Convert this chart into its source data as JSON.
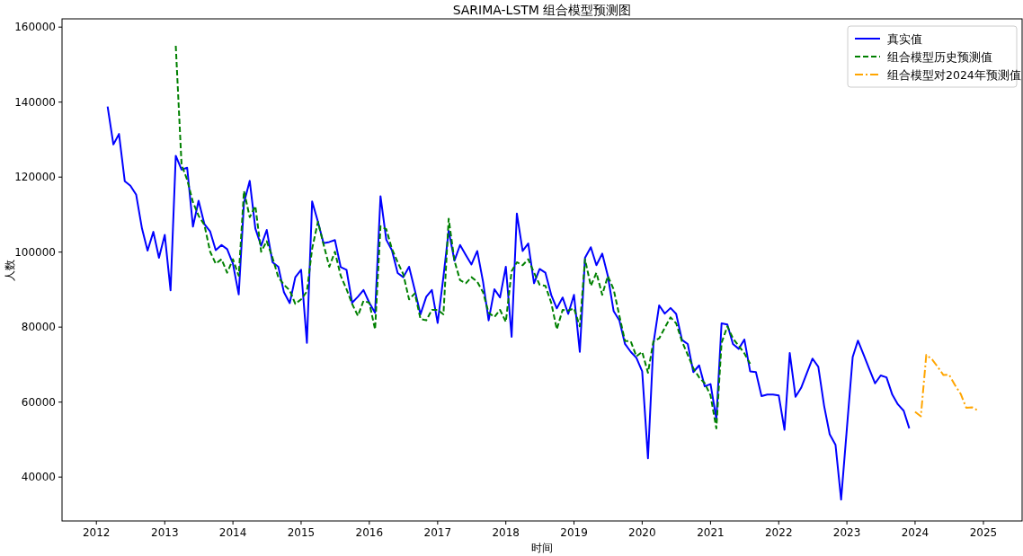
{
  "chart_data": {
    "type": "line",
    "title": "SARIMA-LSTM 组合模型预测图",
    "xlabel": "时间",
    "ylabel": "人数",
    "xlim": [
      "2011-07-01",
      "2025-07-27"
    ],
    "ylim": [
      28300,
      162200
    ],
    "xticks": [
      "2012",
      "2013",
      "2014",
      "2015",
      "2016",
      "2017",
      "2018",
      "2019",
      "2020",
      "2021",
      "2022",
      "2023",
      "2024",
      "2025"
    ],
    "yticks": [
      40000,
      60000,
      80000,
      100000,
      120000,
      140000,
      160000
    ],
    "legend": "top right",
    "series": [
      {
        "name": "真实值",
        "color": "#0000ff",
        "line_style": "solid",
        "x": [
          "2012-03",
          "2012-04",
          "2012-05",
          "2012-06",
          "2012-07",
          "2012-08",
          "2012-09",
          "2012-10",
          "2012-11",
          "2012-12",
          "2013-01",
          "2013-02",
          "2013-03",
          "2013-04",
          "2013-05",
          "2013-06",
          "2013-07",
          "2013-08",
          "2013-09",
          "2013-10",
          "2013-11",
          "2013-12",
          "2014-01",
          "2014-02",
          "2014-03",
          "2014-04",
          "2014-05",
          "2014-06",
          "2014-07",
          "2014-08",
          "2014-09",
          "2014-10",
          "2014-11",
          "2014-12",
          "2015-01",
          "2015-02",
          "2015-03",
          "2015-04",
          "2015-05",
          "2015-06",
          "2015-07",
          "2015-08",
          "2015-09",
          "2015-10",
          "2015-11",
          "2015-12",
          "2016-01",
          "2016-02",
          "2016-03",
          "2016-04",
          "2016-05",
          "2016-06",
          "2016-07",
          "2016-08",
          "2016-09",
          "2016-10",
          "2016-11",
          "2016-12",
          "2017-01",
          "2017-02",
          "2017-03",
          "2017-04",
          "2017-05",
          "2017-06",
          "2017-07",
          "2017-08",
          "2017-09",
          "2017-10",
          "2017-11",
          "2017-12",
          "2018-01",
          "2018-02",
          "2018-03",
          "2018-04",
          "2018-05",
          "2018-06",
          "2018-07",
          "2018-08",
          "2018-09",
          "2018-10",
          "2018-11",
          "2018-12",
          "2019-01",
          "2019-02",
          "2019-03",
          "2019-04",
          "2019-05",
          "2019-06",
          "2019-07",
          "2019-08",
          "2019-09",
          "2019-10",
          "2019-11",
          "2019-12",
          "2020-01",
          "2020-02",
          "2020-03",
          "2020-04",
          "2020-05",
          "2020-06",
          "2020-07",
          "2020-08",
          "2020-09",
          "2020-10",
          "2020-11",
          "2020-12",
          "2021-01",
          "2021-02",
          "2021-03",
          "2021-04",
          "2021-05",
          "2021-06",
          "2021-07",
          "2021-08",
          "2021-09",
          "2021-10",
          "2021-11",
          "2021-12",
          "2022-01",
          "2022-02",
          "2022-03",
          "2022-04",
          "2022-05",
          "2022-06",
          "2022-07",
          "2022-08",
          "2022-09",
          "2022-10",
          "2022-11",
          "2022-12",
          "2023-01",
          "2023-02",
          "2023-03",
          "2023-04",
          "2023-05",
          "2023-06",
          "2023-07",
          "2023-08",
          "2023-09",
          "2023-10",
          "2023-11",
          "2023-12"
        ],
        "values": [
          138800,
          128700,
          131500,
          118900,
          117700,
          115300,
          106300,
          100400,
          105400,
          98500,
          104600,
          89800,
          125700,
          122000,
          122500,
          106800,
          113700,
          107500,
          105500,
          100500,
          101900,
          100800,
          96900,
          88700,
          113100,
          119000,
          106300,
          101700,
          105900,
          97300,
          96100,
          89300,
          86400,
          93300,
          95300,
          75800,
          113500,
          108100,
          102400,
          102700,
          103200,
          96000,
          95300,
          86500,
          88100,
          89900,
          86500,
          83800,
          114900,
          103300,
          100500,
          94400,
          93300,
          96100,
          89800,
          83400,
          88100,
          89900,
          81100,
          93400,
          105700,
          97700,
          101900,
          99200,
          96700,
          100300,
          92100,
          81800,
          90100,
          87900,
          96100,
          77400,
          110300,
          100300,
          102300,
          91700,
          95500,
          94500,
          88600,
          85000,
          87900,
          83500,
          88600,
          73400,
          98500,
          101300,
          96500,
          99600,
          93700,
          84300,
          81800,
          75500,
          73400,
          71800,
          68200,
          45000,
          75500,
          85800,
          83600,
          85100,
          83500,
          76600,
          75500,
          68000,
          69800,
          64200,
          64800,
          55500,
          81000,
          80700,
          75500,
          74200,
          76700,
          68200,
          68000,
          61600,
          62000,
          62000,
          61800,
          52600,
          73100,
          61400,
          63800,
          67800,
          71600,
          69400,
          59000,
          51400,
          48600,
          34000,
          53000,
          72000,
          76400,
          72600,
          68800,
          65000,
          67100,
          66600,
          62000,
          59400,
          57700,
          53000
        ]
      },
      {
        "name": "组合模型历史预测值",
        "color": "#008000",
        "line_style": "dashed",
        "x": [
          "2013-03",
          "2013-04",
          "2013-05",
          "2013-06",
          "2013-07",
          "2013-08",
          "2013-09",
          "2013-10",
          "2013-11",
          "2013-12",
          "2014-01",
          "2014-02",
          "2014-03",
          "2014-04",
          "2014-05",
          "2014-06",
          "2014-07",
          "2014-08",
          "2014-09",
          "2014-10",
          "2014-11",
          "2014-12",
          "2015-01",
          "2015-02",
          "2015-03",
          "2015-04",
          "2015-05",
          "2015-06",
          "2015-07",
          "2015-08",
          "2015-09",
          "2015-10",
          "2015-11",
          "2015-12",
          "2016-01",
          "2016-02",
          "2016-03",
          "2016-04",
          "2016-05",
          "2016-06",
          "2016-07",
          "2016-08",
          "2016-09",
          "2016-10",
          "2016-11",
          "2016-12",
          "2017-01",
          "2017-02",
          "2017-03",
          "2017-04",
          "2017-05",
          "2017-06",
          "2017-07",
          "2017-08",
          "2017-09",
          "2017-10",
          "2017-11",
          "2017-12",
          "2018-01",
          "2018-02",
          "2018-03",
          "2018-04",
          "2018-05",
          "2018-06",
          "2018-07",
          "2018-08",
          "2018-09",
          "2018-10",
          "2018-11",
          "2018-12",
          "2019-01",
          "2019-02",
          "2019-03",
          "2019-04",
          "2019-05",
          "2019-06",
          "2019-07",
          "2019-08",
          "2019-09",
          "2019-10",
          "2019-11",
          "2019-12",
          "2020-01",
          "2020-02",
          "2020-03",
          "2020-04",
          "2020-05",
          "2020-06",
          "2020-07",
          "2020-08",
          "2020-09",
          "2020-10",
          "2020-11",
          "2020-12",
          "2021-01",
          "2021-02",
          "2021-03",
          "2021-04",
          "2021-05",
          "2021-06",
          "2021-07",
          "2021-08"
        ],
        "values": [
          155000,
          123300,
          119300,
          113300,
          109700,
          107300,
          100100,
          96900,
          98100,
          94500,
          98100,
          93700,
          116300,
          109300,
          112300,
          100100,
          102900,
          98500,
          93300,
          91300,
          89800,
          86200,
          87400,
          89500,
          100900,
          108100,
          102100,
          96100,
          100100,
          93700,
          90100,
          86200,
          83000,
          87000,
          86500,
          79400,
          106900,
          106100,
          100900,
          97300,
          94100,
          87400,
          89000,
          82200,
          81800,
          84600,
          84600,
          83400,
          108900,
          97700,
          92500,
          91700,
          93300,
          92100,
          89300,
          83800,
          82700,
          84600,
          81400,
          94900,
          97300,
          96500,
          98100,
          94500,
          91300,
          91000,
          86500,
          79400,
          84600,
          84400,
          85000,
          80200,
          98100,
          91000,
          94500,
          88600,
          93600,
          90100,
          83000,
          76300,
          76200,
          72200,
          73400,
          67800,
          76200,
          77000,
          79800,
          82600,
          81000,
          76200,
          72600,
          69000,
          66600,
          65000,
          61800,
          53000,
          75800,
          80200,
          77000,
          75000,
          73000,
          70200
        ]
      },
      {
        "name": "组合模型对2024年预测值",
        "color": "#ffa500",
        "line_style": "dashdot",
        "x": [
          "2024-01",
          "2024-02",
          "2024-03",
          "2024-04",
          "2024-05",
          "2024-06",
          "2024-07",
          "2024-08",
          "2024-09",
          "2024-10",
          "2024-11",
          "2024-12"
        ],
        "values": [
          57400,
          56200,
          72600,
          71400,
          69400,
          67200,
          67300,
          64600,
          62200,
          58500,
          58600,
          57800
        ]
      }
    ]
  }
}
